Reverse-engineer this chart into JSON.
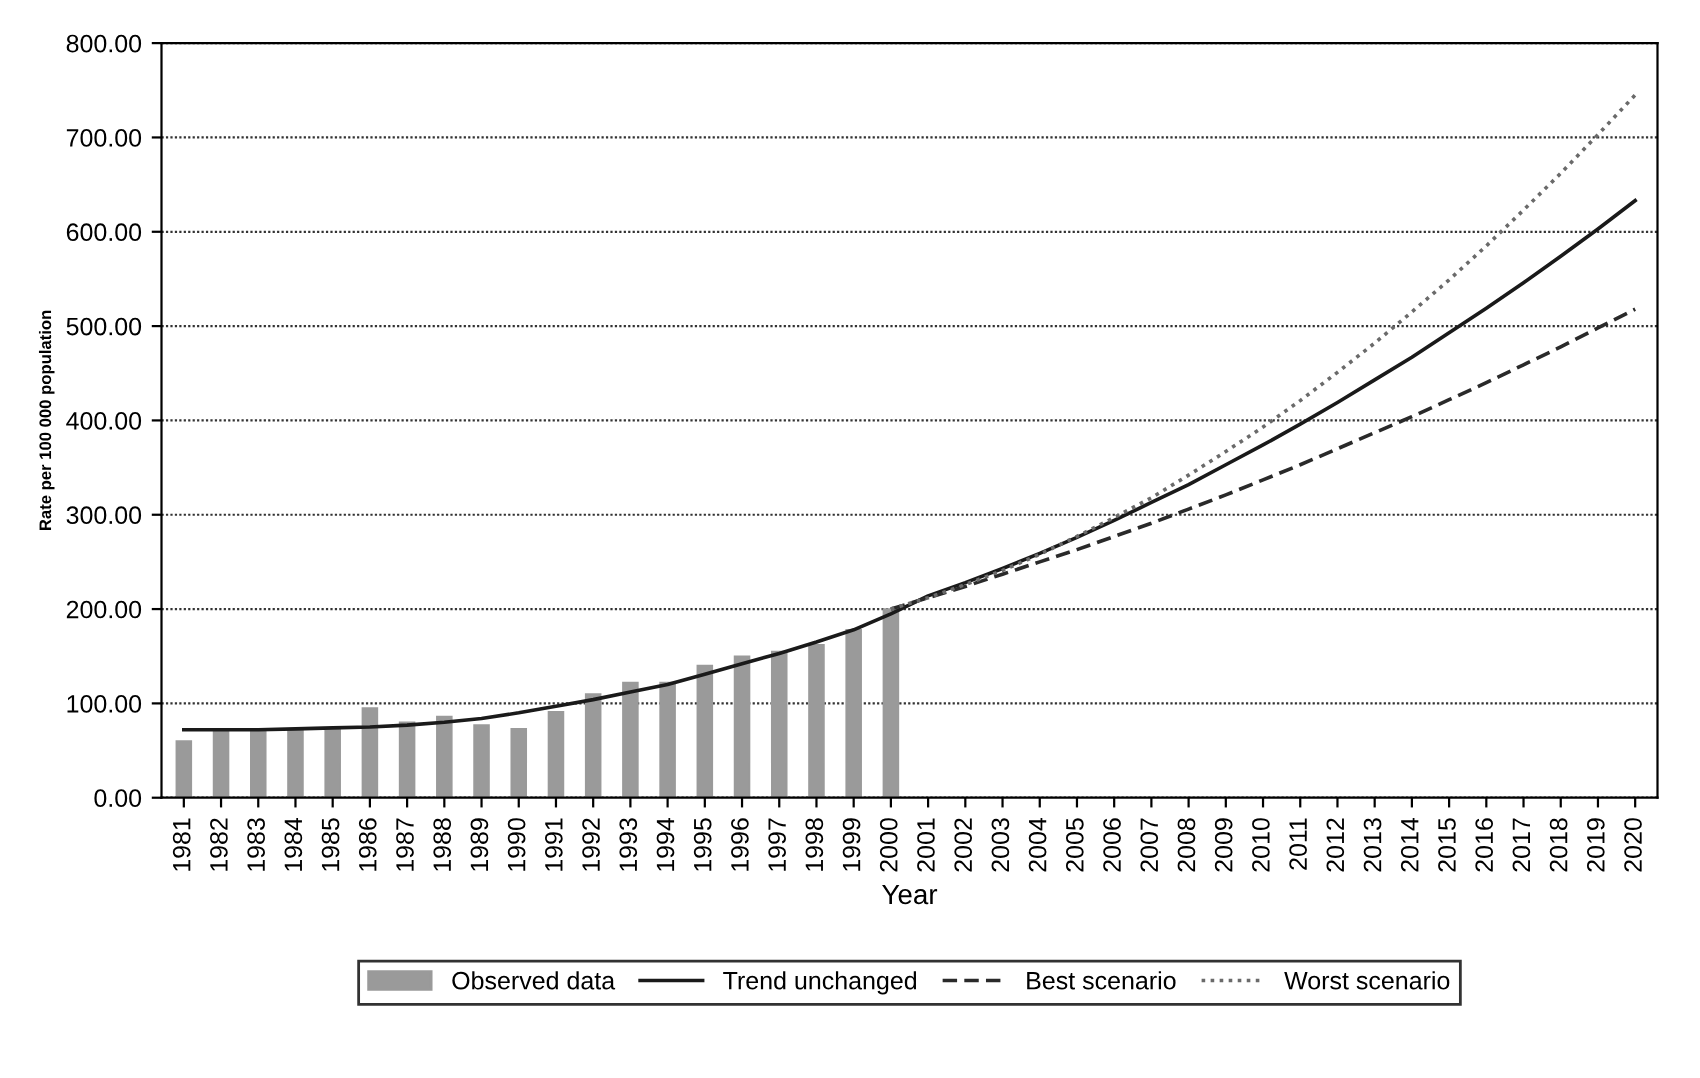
{
  "chart_data": {
    "type": "bar",
    "xlabel": "Year",
    "ylabel": "Rate per 100 000 population",
    "categories": [
      "1981",
      "1982",
      "1983",
      "1984",
      "1985",
      "1986",
      "1987",
      "1988",
      "1989",
      "1990",
      "1991",
      "1992",
      "1993",
      "1994",
      "1995",
      "1996",
      "1997",
      "1998",
      "1999",
      "2000",
      "2001",
      "2002",
      "2003",
      "2004",
      "2005",
      "2006",
      "2007",
      "2008",
      "2009",
      "2010",
      "2011",
      "2012",
      "2013",
      "2014",
      "2015",
      "2016",
      "2017",
      "2018",
      "2019",
      "2020"
    ],
    "series": [
      {
        "name": "Observed data",
        "color": "#9a9a9a",
        "values": [
          60,
          70,
          70,
          73,
          73,
          95,
          80,
          86,
          77,
          73,
          91,
          110,
          122,
          122,
          140,
          150,
          155,
          162,
          178,
          200,
          null,
          null,
          null,
          null,
          null,
          null,
          null,
          null,
          null,
          null,
          null,
          null,
          null,
          null,
          null,
          null,
          null,
          null,
          null,
          null
        ]
      },
      {
        "name": "Trend unchanged",
        "type": "line",
        "color": "#1a1a1a",
        "line_style": "solid",
        "values": [
          72,
          72,
          72,
          73,
          74,
          75,
          77,
          80,
          84,
          90,
          97,
          104,
          112,
          120,
          131,
          142,
          153,
          165,
          178,
          195,
          214,
          228,
          243,
          259,
          276,
          294,
          313,
          332,
          353,
          374,
          396,
          419,
          443,
          467,
          493,
          519,
          546,
          574,
          603,
          633
        ]
      },
      {
        "name": "Best scenario",
        "type": "line",
        "color": "#2a2a2a",
        "line_style": "dashed",
        "values": [
          null,
          null,
          null,
          null,
          null,
          null,
          null,
          null,
          null,
          null,
          null,
          null,
          null,
          null,
          null,
          null,
          null,
          null,
          null,
          200,
          212,
          224,
          237,
          250,
          263,
          277,
          291,
          306,
          321,
          337,
          353,
          370,
          387,
          404,
          422,
          440,
          459,
          478,
          498,
          518
        ]
      },
      {
        "name": "Worst scenario",
        "type": "line",
        "color": "#6a6a6a",
        "line_style": "dotted",
        "values": [
          null,
          null,
          null,
          null,
          null,
          null,
          null,
          null,
          null,
          null,
          null,
          null,
          null,
          null,
          null,
          null,
          null,
          null,
          null,
          200,
          212,
          226,
          241,
          258,
          277,
          297,
          318,
          342,
          367,
          393,
          421,
          451,
          482,
          515,
          549,
          585,
          623,
          662,
          703,
          745
        ]
      }
    ],
    "ylim": [
      0,
      800
    ],
    "yticks": [
      {
        "value": 0,
        "label": "0.00"
      },
      {
        "value": 100,
        "label": "100.00"
      },
      {
        "value": 200,
        "label": "200.00"
      },
      {
        "value": 300,
        "label": "300.00"
      },
      {
        "value": 400,
        "label": "400.00"
      },
      {
        "value": 500,
        "label": "500.00"
      },
      {
        "value": 600,
        "label": "600.00"
      },
      {
        "value": 700,
        "label": "700.00"
      },
      {
        "value": 800,
        "label": "800.00"
      }
    ],
    "grid": "y",
    "legend": "bottom"
  }
}
